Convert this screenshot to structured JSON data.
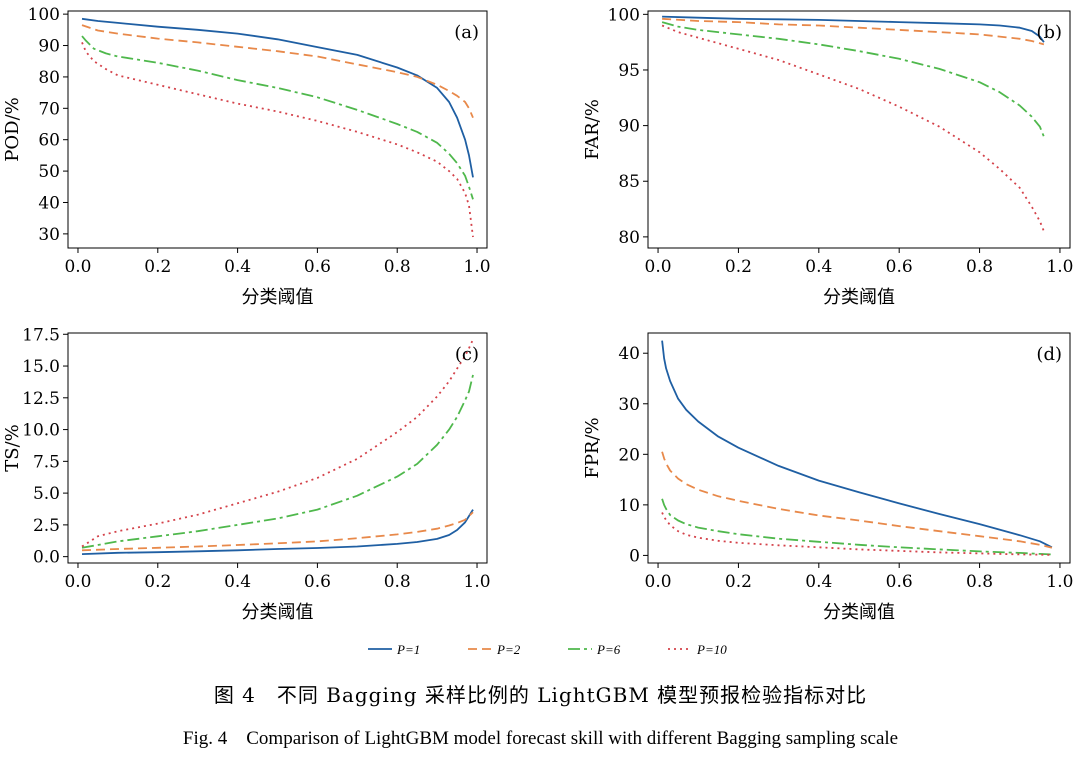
{
  "legend": [
    {
      "name": "P=1",
      "color": "#1f5fa3",
      "dash": ""
    },
    {
      "name": "P=2",
      "color": "#e8894a",
      "dash": "9,5"
    },
    {
      "name": "P=6",
      "color": "#4fb84c",
      "dash": "12,4,3,4"
    },
    {
      "name": "P=10",
      "color": "#d4424a",
      "dash": "2,4"
    }
  ],
  "caption": {
    "cn": "图 4　不同 Bagging 采样比例的 LightGBM 模型预报检验指标对比",
    "en": "Fig. 4　Comparison of LightGBM model forecast skill with different Bagging sampling scale"
  },
  "chart_data": [
    {
      "id": "a",
      "type": "line",
      "tag": "(a)",
      "xlabel": "分类阈值",
      "ylabel": "POD/%",
      "xlim": [
        -0.025,
        1.025
      ],
      "ylim": [
        25.5,
        101
      ],
      "xticks": [
        0,
        0.2,
        0.4,
        0.6,
        0.8,
        1.0
      ],
      "xtick_labels": [
        "0.0",
        "0.2",
        "0.4",
        "0.6",
        "0.8",
        "1.0"
      ],
      "yticks": [
        30,
        40,
        50,
        60,
        70,
        80,
        90,
        100
      ],
      "ytick_labels": [
        "30",
        "40",
        "50",
        "60",
        "70",
        "80",
        "90",
        "100"
      ],
      "grid": false,
      "legend": "bottom (shared)",
      "series": [
        {
          "name": "P=1",
          "x": [
            0.01,
            0.05,
            0.1,
            0.2,
            0.3,
            0.4,
            0.5,
            0.6,
            0.7,
            0.8,
            0.85,
            0.9,
            0.93,
            0.95,
            0.97,
            0.98,
            0.99
          ],
          "y": [
            98.5,
            97.8,
            97.2,
            96,
            95,
            93.8,
            92,
            89.5,
            87,
            83,
            80.5,
            76.5,
            72,
            67,
            60,
            55,
            48
          ]
        },
        {
          "name": "P=2",
          "x": [
            0.01,
            0.05,
            0.1,
            0.2,
            0.3,
            0.4,
            0.5,
            0.6,
            0.7,
            0.8,
            0.85,
            0.9,
            0.93,
            0.95,
            0.97,
            0.98,
            0.99
          ],
          "y": [
            96.5,
            94.8,
            93.8,
            92.2,
            91,
            89.6,
            88.2,
            86.5,
            84,
            81.5,
            80,
            77.5,
            75.5,
            74,
            72,
            70,
            67
          ]
        },
        {
          "name": "P=6",
          "x": [
            0.01,
            0.02,
            0.04,
            0.07,
            0.1,
            0.2,
            0.3,
            0.4,
            0.5,
            0.6,
            0.7,
            0.8,
            0.85,
            0.9,
            0.93,
            0.95,
            0.97,
            0.98,
            0.99
          ],
          "y": [
            93,
            91.5,
            89,
            87.5,
            86.5,
            84.5,
            82,
            79,
            76.5,
            73.5,
            69.5,
            65,
            62.5,
            59,
            55.5,
            52.5,
            48.5,
            45,
            41
          ]
        },
        {
          "name": "P=10",
          "x": [
            0.01,
            0.02,
            0.04,
            0.07,
            0.1,
            0.2,
            0.3,
            0.4,
            0.5,
            0.6,
            0.7,
            0.8,
            0.85,
            0.9,
            0.93,
            0.95,
            0.97,
            0.98,
            0.99
          ],
          "y": [
            91,
            88,
            85,
            82.5,
            80.5,
            77.5,
            74.5,
            71.5,
            69,
            66,
            62.5,
            58.5,
            56,
            53,
            50,
            47.5,
            43,
            39,
            29
          ]
        }
      ]
    },
    {
      "id": "b",
      "type": "line",
      "tag": "(b)",
      "xlabel": "分类阈值",
      "ylabel": "FAR/%",
      "xlim": [
        -0.025,
        1.025
      ],
      "ylim": [
        79,
        100.3
      ],
      "xticks": [
        0,
        0.2,
        0.4,
        0.6,
        0.8,
        1.0
      ],
      "xtick_labels": [
        "0.0",
        "0.2",
        "0.4",
        "0.6",
        "0.8",
        "1.0"
      ],
      "yticks": [
        80,
        85,
        90,
        95,
        100
      ],
      "ytick_labels": [
        "80",
        "85",
        "90",
        "95",
        "100"
      ],
      "grid": false,
      "legend": "bottom (shared)",
      "series": [
        {
          "name": "P=1",
          "x": [
            0.01,
            0.1,
            0.2,
            0.3,
            0.4,
            0.5,
            0.6,
            0.7,
            0.8,
            0.85,
            0.9,
            0.93,
            0.95,
            0.96
          ],
          "y": [
            99.8,
            99.7,
            99.6,
            99.55,
            99.5,
            99.4,
            99.3,
            99.2,
            99.1,
            99.0,
            98.8,
            98.5,
            98.0,
            97.5
          ]
        },
        {
          "name": "P=2",
          "x": [
            0.01,
            0.1,
            0.2,
            0.3,
            0.4,
            0.5,
            0.6,
            0.7,
            0.8,
            0.85,
            0.9,
            0.93,
            0.95,
            0.96
          ],
          "y": [
            99.6,
            99.4,
            99.3,
            99.1,
            99.0,
            98.8,
            98.6,
            98.4,
            98.2,
            98.0,
            97.8,
            97.6,
            97.4,
            97.3
          ]
        },
        {
          "name": "P=6",
          "x": [
            0.01,
            0.05,
            0.1,
            0.2,
            0.3,
            0.4,
            0.5,
            0.6,
            0.7,
            0.8,
            0.85,
            0.9,
            0.93,
            0.95,
            0.96
          ],
          "y": [
            99.3,
            98.9,
            98.6,
            98.2,
            97.8,
            97.3,
            96.7,
            96.0,
            95.1,
            93.9,
            93.0,
            91.8,
            90.8,
            89.9,
            89.0
          ]
        },
        {
          "name": "P=10",
          "x": [
            0.01,
            0.05,
            0.1,
            0.2,
            0.3,
            0.4,
            0.5,
            0.6,
            0.7,
            0.8,
            0.85,
            0.9,
            0.93,
            0.95,
            0.96
          ],
          "y": [
            99.0,
            98.4,
            97.9,
            96.9,
            95.9,
            94.6,
            93.3,
            91.7,
            89.9,
            87.6,
            86.1,
            84.4,
            82.7,
            81.4,
            80.5
          ]
        }
      ]
    },
    {
      "id": "c",
      "type": "line",
      "tag": "(c)",
      "xlabel": "分类阈值",
      "ylabel": "TS/%",
      "xlim": [
        -0.025,
        1.025
      ],
      "ylim": [
        -0.5,
        17.6
      ],
      "xticks": [
        0,
        0.2,
        0.4,
        0.6,
        0.8,
        1.0
      ],
      "xtick_labels": [
        "0.0",
        "0.2",
        "0.4",
        "0.6",
        "0.8",
        "1.0"
      ],
      "yticks": [
        0,
        2.5,
        5,
        7.5,
        10,
        12.5,
        15,
        17.5
      ],
      "ytick_labels": [
        "0.0",
        "2.5",
        "5.0",
        "7.5",
        "10.0",
        "12.5",
        "15.0",
        "17.5"
      ],
      "grid": false,
      "legend": "bottom (shared)",
      "series": [
        {
          "name": "P=1",
          "x": [
            0.01,
            0.1,
            0.2,
            0.3,
            0.4,
            0.5,
            0.6,
            0.7,
            0.8,
            0.85,
            0.9,
            0.93,
            0.95,
            0.97,
            0.99
          ],
          "y": [
            0.2,
            0.3,
            0.35,
            0.42,
            0.5,
            0.6,
            0.68,
            0.8,
            1.0,
            1.15,
            1.4,
            1.7,
            2.1,
            2.7,
            3.7
          ]
        },
        {
          "name": "P=2",
          "x": [
            0.01,
            0.1,
            0.2,
            0.3,
            0.4,
            0.5,
            0.6,
            0.7,
            0.8,
            0.85,
            0.9,
            0.93,
            0.95,
            0.97,
            0.99
          ],
          "y": [
            0.5,
            0.6,
            0.7,
            0.8,
            0.92,
            1.05,
            1.2,
            1.45,
            1.75,
            1.95,
            2.2,
            2.45,
            2.65,
            2.9,
            3.5
          ]
        },
        {
          "name": "P=6",
          "x": [
            0.01,
            0.1,
            0.2,
            0.3,
            0.4,
            0.5,
            0.6,
            0.7,
            0.8,
            0.85,
            0.9,
            0.93,
            0.95,
            0.97,
            0.98,
            0.99
          ],
          "y": [
            0.7,
            1.2,
            1.6,
            2.0,
            2.5,
            3.0,
            3.7,
            4.8,
            6.3,
            7.3,
            8.8,
            10.0,
            11.0,
            12.3,
            13.0,
            14.3
          ]
        },
        {
          "name": "P=10",
          "x": [
            0.01,
            0.05,
            0.1,
            0.2,
            0.3,
            0.4,
            0.5,
            0.6,
            0.7,
            0.8,
            0.85,
            0.9,
            0.93,
            0.95,
            0.97,
            0.98,
            0.99
          ],
          "y": [
            0.8,
            1.6,
            2.0,
            2.6,
            3.3,
            4.2,
            5.1,
            6.2,
            7.7,
            9.8,
            11.0,
            12.6,
            13.8,
            14.8,
            15.8,
            16.4,
            17.1
          ]
        }
      ]
    },
    {
      "id": "d",
      "type": "line",
      "tag": "(d)",
      "xlabel": "分类阈值",
      "ylabel": "FPR/%",
      "xlim": [
        -0.025,
        1.025
      ],
      "ylim": [
        -1.5,
        44
      ],
      "xticks": [
        0,
        0.2,
        0.4,
        0.6,
        0.8,
        1.0
      ],
      "xtick_labels": [
        "0.0",
        "0.2",
        "0.4",
        "0.6",
        "0.8",
        "1.0"
      ],
      "yticks": [
        0,
        10,
        20,
        30,
        40
      ],
      "ytick_labels": [
        "0",
        "10",
        "20",
        "30",
        "40"
      ],
      "grid": false,
      "legend": "bottom (shared)",
      "series": [
        {
          "name": "P=1",
          "x": [
            0.01,
            0.015,
            0.02,
            0.03,
            0.05,
            0.07,
            0.1,
            0.15,
            0.2,
            0.3,
            0.4,
            0.5,
            0.6,
            0.7,
            0.8,
            0.9,
            0.95,
            0.98
          ],
          "y": [
            42.5,
            39,
            37,
            34.5,
            31,
            28.8,
            26.5,
            23.5,
            21.3,
            17.7,
            14.8,
            12.5,
            10.3,
            8.2,
            6.2,
            4.0,
            2.8,
            1.6
          ]
        },
        {
          "name": "P=2",
          "x": [
            0.01,
            0.015,
            0.02,
            0.03,
            0.05,
            0.07,
            0.1,
            0.15,
            0.2,
            0.3,
            0.4,
            0.5,
            0.6,
            0.7,
            0.8,
            0.9,
            0.95,
            0.98
          ],
          "y": [
            20.5,
            19.2,
            18.2,
            16.8,
            15.2,
            14.1,
            13.0,
            11.7,
            10.8,
            9.2,
            7.9,
            6.9,
            5.8,
            4.8,
            3.8,
            2.8,
            2.1,
            1.5
          ]
        },
        {
          "name": "P=6",
          "x": [
            0.01,
            0.015,
            0.02,
            0.03,
            0.05,
            0.07,
            0.1,
            0.15,
            0.2,
            0.3,
            0.4,
            0.5,
            0.6,
            0.7,
            0.8,
            0.9,
            0.95,
            0.98
          ],
          "y": [
            11.2,
            10.0,
            9.2,
            8.0,
            6.9,
            6.2,
            5.5,
            4.8,
            4.2,
            3.3,
            2.7,
            2.1,
            1.6,
            1.2,
            0.8,
            0.5,
            0.3,
            0.2
          ]
        },
        {
          "name": "P=10",
          "x": [
            0.01,
            0.015,
            0.02,
            0.03,
            0.05,
            0.07,
            0.1,
            0.15,
            0.2,
            0.3,
            0.4,
            0.5,
            0.6,
            0.7,
            0.8,
            0.9,
            0.95,
            0.98
          ],
          "y": [
            8.5,
            7.6,
            7.0,
            6.0,
            4.8,
            4.1,
            3.5,
            2.9,
            2.5,
            2.0,
            1.6,
            1.2,
            0.9,
            0.6,
            0.4,
            0.2,
            0.15,
            0.1
          ]
        }
      ]
    }
  ]
}
